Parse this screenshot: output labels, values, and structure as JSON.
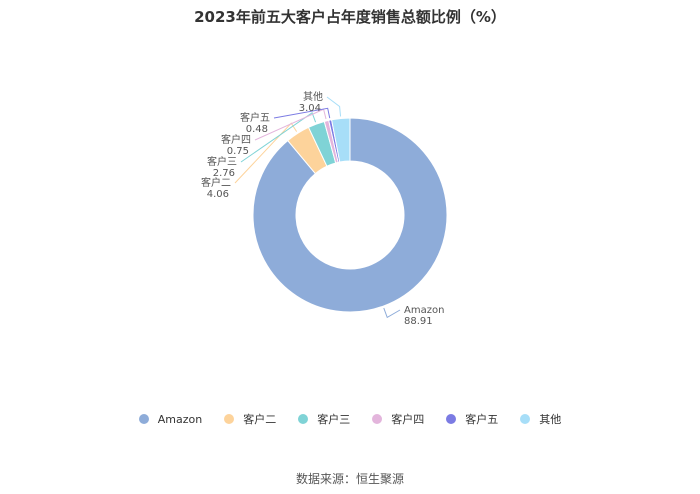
{
  "chart_data": {
    "type": "pie",
    "donut": true,
    "title": "2023年前五大客户占年度销售总额比例（%）",
    "labels": [
      "Amazon",
      "客户二",
      "客户三",
      "客户四",
      "客户五",
      "其他"
    ],
    "values": [
      88.91,
      4.06,
      2.76,
      0.75,
      0.48,
      3.04
    ],
    "value_labels": [
      "88.91",
      "4.06",
      "2.76",
      "0.75",
      "0.48",
      "3.04"
    ],
    "colors": [
      "#8eacd9",
      "#fdd39b",
      "#7fd3d6",
      "#e3b5dc",
      "#7b7be3",
      "#a7def8"
    ],
    "legend_position": "bottom"
  },
  "source": "数据来源：恒生聚源"
}
